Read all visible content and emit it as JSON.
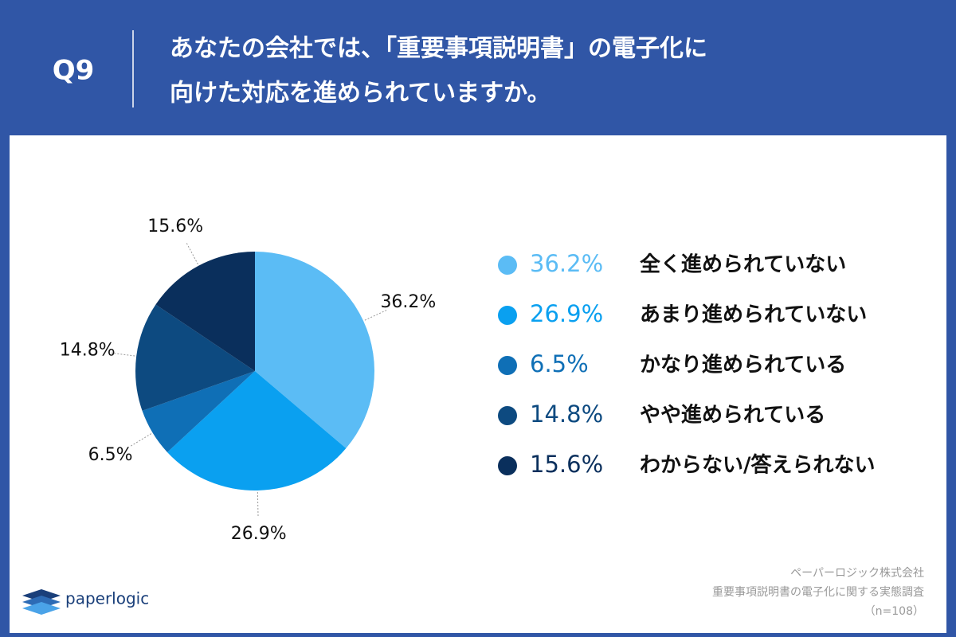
{
  "chart_data": {
    "type": "pie",
    "question": "Q9",
    "title": [
      "あなたの会社では、「重要事項説明書」の電子化に",
      "向けた対応を進められていますか。"
    ],
    "categories": [
      "全く進められていない",
      "あまり進められていない",
      "かなり進められている",
      "やや進められている",
      "わからない/答えられない"
    ],
    "values": [
      36.2,
      26.9,
      6.5,
      14.8,
      15.6
    ],
    "value_labels": [
      "36.2%",
      "26.9%",
      "6.5%",
      "14.8%",
      "15.6%"
    ],
    "colors": [
      "#5bbcf5",
      "#0aa0f0",
      "#0f6fb6",
      "#0d4a80",
      "#0a2f5c"
    ],
    "legend": "right",
    "source": [
      "ペーパーロジック株式会社",
      "重要事項説明書の電子化に関する実態調査",
      "（n=108）"
    ],
    "logo": "paperlogic"
  }
}
